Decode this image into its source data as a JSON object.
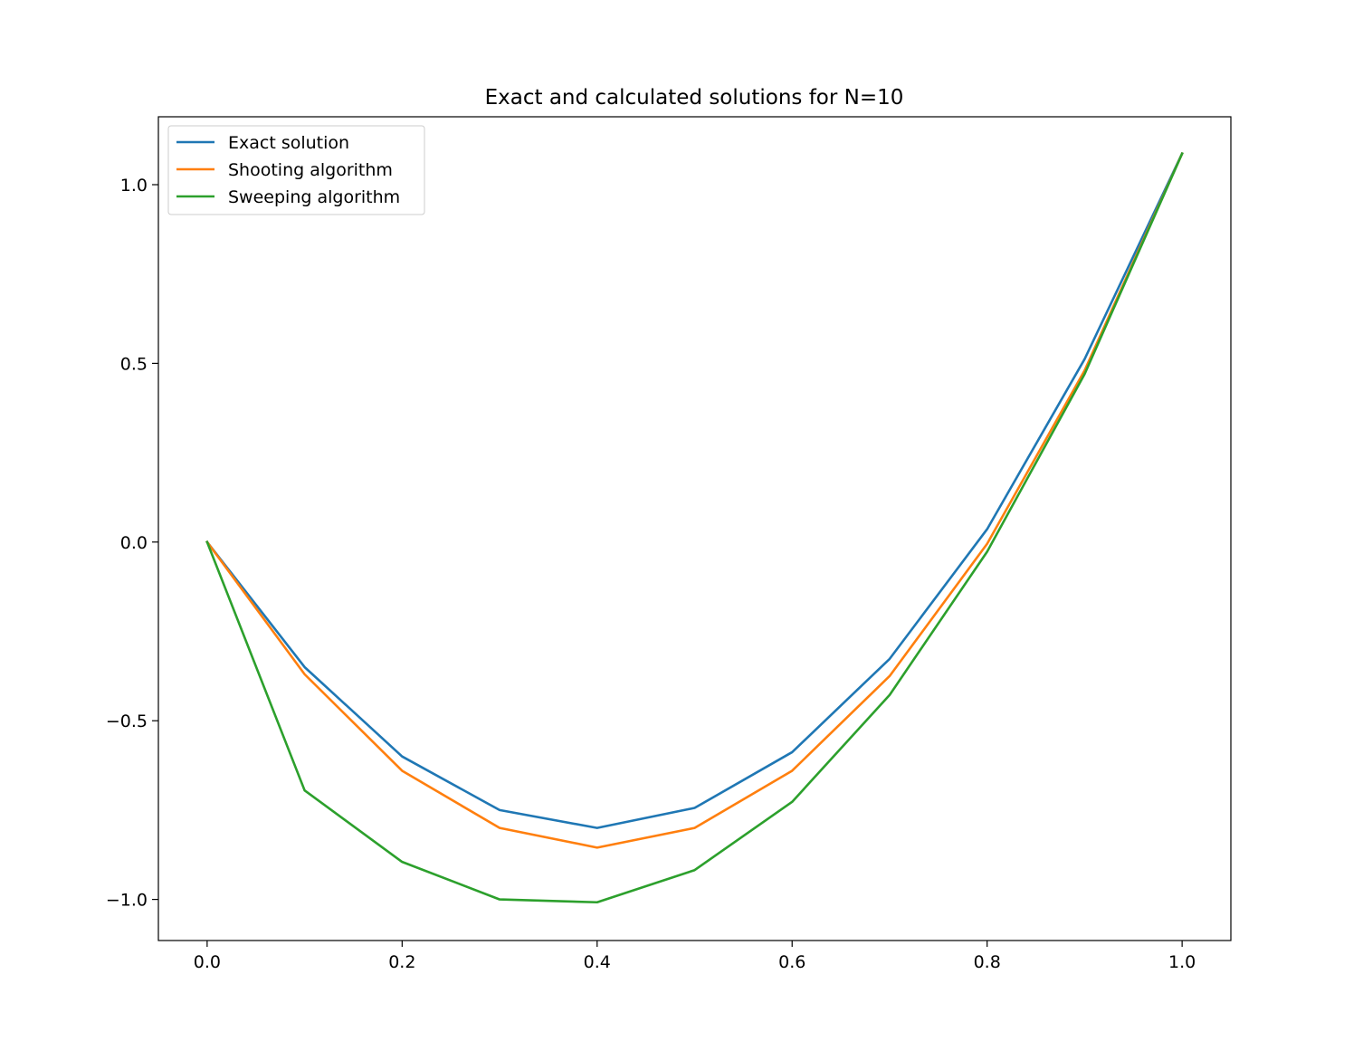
{
  "chart_data": {
    "type": "line",
    "title": "Exact and calculated solutions for N=10",
    "xlabel": "",
    "ylabel": "",
    "xlim": [
      -0.05,
      1.05
    ],
    "ylim": [
      -1.115,
      1.19
    ],
    "grid": false,
    "legend_position": "top-left",
    "x": [
      0.0,
      0.1,
      0.2,
      0.3,
      0.4,
      0.5,
      0.6,
      0.7,
      0.8,
      0.9,
      1.0
    ],
    "x_ticks": [
      {
        "value": 0.0,
        "label": "0.0"
      },
      {
        "value": 0.2,
        "label": "0.2"
      },
      {
        "value": 0.4,
        "label": "0.4"
      },
      {
        "value": 0.6,
        "label": "0.6"
      },
      {
        "value": 0.8,
        "label": "0.8"
      },
      {
        "value": 1.0,
        "label": "1.0"
      }
    ],
    "y_ticks": [
      {
        "value": -1.0,
        "label": "−1.0"
      },
      {
        "value": -0.5,
        "label": "−0.5"
      },
      {
        "value": 0.0,
        "label": "0.0"
      },
      {
        "value": 0.5,
        "label": "0.5"
      },
      {
        "value": 1.0,
        "label": "1.0"
      }
    ],
    "series": [
      {
        "name": "Exact solution",
        "color": "#1f77b4",
        "values": [
          0.0,
          -0.35,
          -0.6,
          -0.75,
          -0.8,
          -0.744,
          -0.588,
          -0.327,
          0.036,
          0.512,
          1.087
        ]
      },
      {
        "name": "Shooting algorithm",
        "color": "#ff7f0e",
        "values": [
          0.0,
          -0.37,
          -0.64,
          -0.8,
          -0.855,
          -0.8,
          -0.64,
          -0.375,
          -0.005,
          0.48,
          1.087
        ]
      },
      {
        "name": "Sweeping algorithm",
        "color": "#2ca02c",
        "values": [
          0.0,
          -0.695,
          -0.895,
          -1.0,
          -1.008,
          -0.918,
          -0.727,
          -0.428,
          -0.027,
          0.47,
          1.087
        ]
      }
    ]
  }
}
